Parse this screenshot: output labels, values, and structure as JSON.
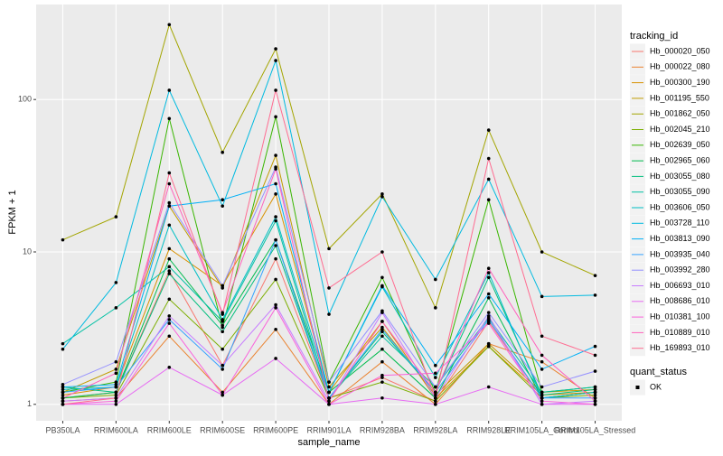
{
  "chart_data": {
    "type": "line",
    "x_label": "sample_name",
    "y_label": "FPKM + 1",
    "categories": [
      "PB350LA",
      "RRIM600LA",
      "RRIM600LE",
      "RRIM600SE",
      "RRIM600PE",
      "RRIM901LA",
      "RRIM928BA",
      "RRIM928LA",
      "RRIM928LE",
      "RRIM105LA_Control",
      "RRIM105LA_Stressed"
    ],
    "log_y": true,
    "grid": true,
    "ylim": [
      0.78,
      420
    ],
    "yticks": [
      1,
      10,
      100
    ],
    "legend_title": "tracking_id",
    "series": [
      {
        "name": "Hb_000020_050",
        "color": "#F8766D",
        "values": [
          1.1,
          1.2,
          7.5,
          1.8,
          9,
          1.1,
          1.5,
          1.05,
          3.5,
          1.1,
          1.2
        ]
      },
      {
        "name": "Hb_000022_080",
        "color": "#EA8331",
        "values": [
          1.05,
          1.1,
          2.8,
          1.2,
          3.1,
          1.0,
          1.9,
          1.0,
          2.5,
          1.9,
          1.1
        ]
      },
      {
        "name": "Hb_000300_190",
        "color": "#D89000",
        "values": [
          1.15,
          1.3,
          10.5,
          6,
          24,
          1.2,
          3.5,
          1.1,
          2.4,
          1.15,
          1.2
        ]
      },
      {
        "name": "Hb_001195_550",
        "color": "#C09B00",
        "values": [
          1.2,
          1.7,
          20,
          5.8,
          43,
          1.3,
          3.2,
          1.15,
          2.5,
          1.2,
          1.25
        ]
      },
      {
        "name": "Hb_001862_050",
        "color": "#A3A500",
        "values": [
          12,
          17,
          310,
          45,
          215,
          10.5,
          24,
          4.3,
          63,
          10,
          7
        ]
      },
      {
        "name": "Hb_002045_210",
        "color": "#7CAE00",
        "values": [
          1.1,
          1.15,
          4.9,
          2.3,
          6.6,
          1.1,
          1.4,
          1.05,
          2.4,
          1.1,
          1.15
        ]
      },
      {
        "name": "Hb_002639_050",
        "color": "#39B600",
        "values": [
          1.2,
          1.4,
          75,
          3.2,
          77,
          1.4,
          6.8,
          1.2,
          22,
          1.2,
          1.3
        ]
      },
      {
        "name": "Hb_002965_060",
        "color": "#00BB4E",
        "values": [
          1.1,
          1.2,
          9,
          3.3,
          12,
          1.2,
          2.3,
          1.1,
          5,
          1.1,
          1.2
        ]
      },
      {
        "name": "Hb_003055_080",
        "color": "#00BF7D",
        "values": [
          1.3,
          1.2,
          7.2,
          3,
          11,
          1.1,
          3,
          1.2,
          6.8,
          1.15,
          1.25
        ]
      },
      {
        "name": "Hb_003055_090",
        "color": "#00C1A3",
        "values": [
          2.5,
          4.3,
          8,
          3.5,
          16,
          1.1,
          2.8,
          1.3,
          3.7,
          1.2,
          1.3
        ]
      },
      {
        "name": "Hb_003606_050",
        "color": "#00BFC4",
        "values": [
          1.25,
          1.3,
          15,
          3.6,
          17,
          1.2,
          5.9,
          1.5,
          7.3,
          1.1,
          1.2
        ]
      },
      {
        "name": "Hb_003728_110",
        "color": "#00BAE0",
        "values": [
          2.3,
          6.3,
          115,
          20,
          180,
          3.9,
          23,
          6.6,
          30,
          5.1,
          5.2
        ]
      },
      {
        "name": "Hb_003813_090",
        "color": "#00B0F6",
        "values": [
          1.3,
          1.35,
          20,
          22,
          28,
          1.2,
          6,
          1.8,
          5.3,
          1.7,
          2.4
        ]
      },
      {
        "name": "Hb_003935_040",
        "color": "#35A2FF",
        "values": [
          1.2,
          1.3,
          3.6,
          1.7,
          12,
          1.1,
          3.1,
          1.2,
          3.6,
          1.1,
          1.1
        ]
      },
      {
        "name": "Hb_003992_280",
        "color": "#9590FF",
        "values": [
          1.35,
          1.9,
          21,
          6,
          36,
          1.4,
          4.1,
          1.3,
          4,
          1.3,
          1.65
        ]
      },
      {
        "name": "Hb_006693_010",
        "color": "#C77CFF",
        "values": [
          1.05,
          1.1,
          3.8,
          1.8,
          4.5,
          1.05,
          4,
          1.1,
          3.8,
          1.0,
          1.05
        ]
      },
      {
        "name": "Hb_008686_010",
        "color": "#E76BF3",
        "values": [
          1.0,
          1.0,
          1.75,
          1.15,
          2.0,
          1.0,
          1.1,
          1.0,
          1.3,
          1.0,
          1.0
        ]
      },
      {
        "name": "Hb_010381_100",
        "color": "#FA62DB",
        "values": [
          1.0,
          1.05,
          3.4,
          1.15,
          4.3,
          1.0,
          1.55,
          1.6,
          3.4,
          1.05,
          1.0
        ]
      },
      {
        "name": "Hb_010889_010",
        "color": "#FF62BC",
        "values": [
          1.1,
          1.6,
          28,
          4,
          35,
          1.05,
          3.5,
          1.2,
          7.8,
          2.1,
          1.05
        ]
      },
      {
        "name": "Hb_169893_010",
        "color": "#FF6C91",
        "values": [
          1.0,
          1.1,
          33,
          3.9,
          115,
          5.8,
          10,
          1.1,
          41,
          2.8,
          2.1
        ]
      }
    ],
    "legend2_title": "quant_status",
    "legend2_labels": [
      "OK"
    ]
  }
}
